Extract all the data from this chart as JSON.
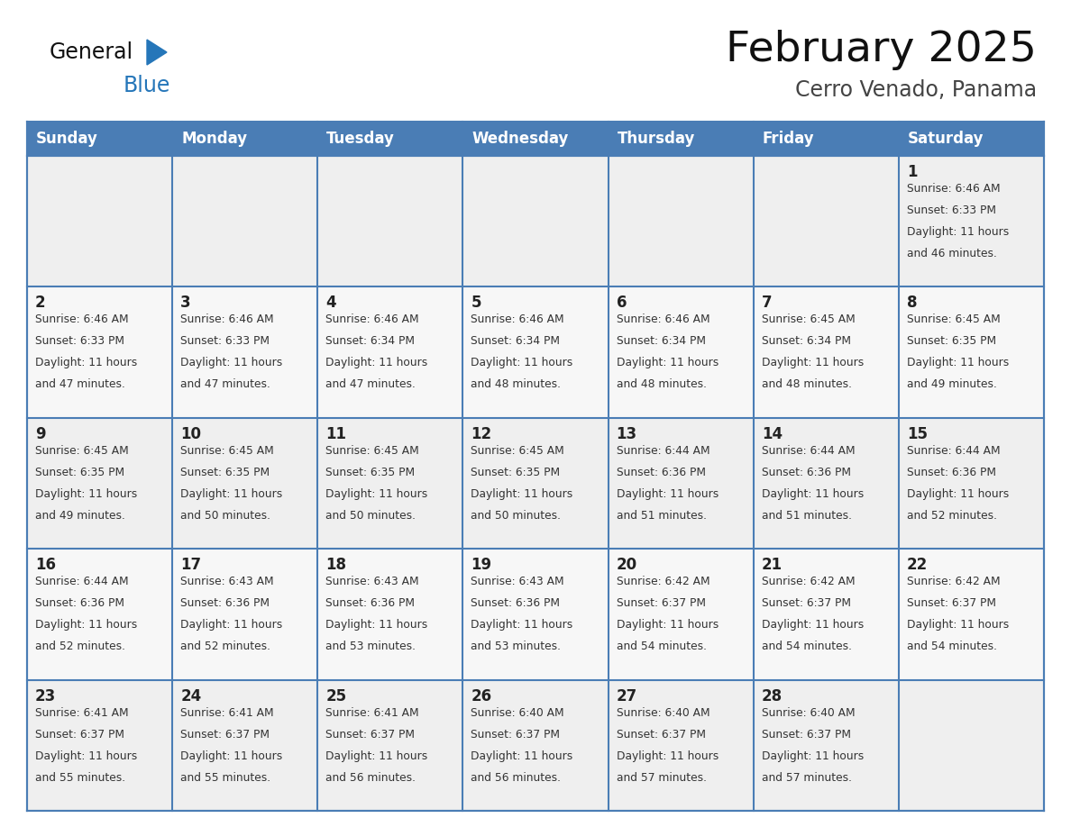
{
  "title": "February 2025",
  "subtitle": "Cerro Venado, Panama",
  "days_of_week": [
    "Sunday",
    "Monday",
    "Tuesday",
    "Wednesday",
    "Thursday",
    "Friday",
    "Saturday"
  ],
  "header_bg": "#4a7db5",
  "header_text": "#ffffff",
  "cell_bg_odd": "#efefef",
  "cell_bg_even": "#f7f7f7",
  "border_color": "#4a7db5",
  "day_num_color": "#222222",
  "info_color": "#333333",
  "title_color": "#111111",
  "subtitle_color": "#444444",
  "logo_general_color": "#111111",
  "logo_blue_color": "#2576b9",
  "calendar": [
    [
      null,
      null,
      null,
      null,
      null,
      null,
      {
        "day": 1,
        "sunrise": "6:46 AM",
        "sunset": "6:33 PM",
        "daylight": "11 hours",
        "daylight2": "and 46 minutes."
      }
    ],
    [
      {
        "day": 2,
        "sunrise": "6:46 AM",
        "sunset": "6:33 PM",
        "daylight": "11 hours",
        "daylight2": "and 47 minutes."
      },
      {
        "day": 3,
        "sunrise": "6:46 AM",
        "sunset": "6:33 PM",
        "daylight": "11 hours",
        "daylight2": "and 47 minutes."
      },
      {
        "day": 4,
        "sunrise": "6:46 AM",
        "sunset": "6:34 PM",
        "daylight": "11 hours",
        "daylight2": "and 47 minutes."
      },
      {
        "day": 5,
        "sunrise": "6:46 AM",
        "sunset": "6:34 PM",
        "daylight": "11 hours",
        "daylight2": "and 48 minutes."
      },
      {
        "day": 6,
        "sunrise": "6:46 AM",
        "sunset": "6:34 PM",
        "daylight": "11 hours",
        "daylight2": "and 48 minutes."
      },
      {
        "day": 7,
        "sunrise": "6:45 AM",
        "sunset": "6:34 PM",
        "daylight": "11 hours",
        "daylight2": "and 48 minutes."
      },
      {
        "day": 8,
        "sunrise": "6:45 AM",
        "sunset": "6:35 PM",
        "daylight": "11 hours",
        "daylight2": "and 49 minutes."
      }
    ],
    [
      {
        "day": 9,
        "sunrise": "6:45 AM",
        "sunset": "6:35 PM",
        "daylight": "11 hours",
        "daylight2": "and 49 minutes."
      },
      {
        "day": 10,
        "sunrise": "6:45 AM",
        "sunset": "6:35 PM",
        "daylight": "11 hours",
        "daylight2": "and 50 minutes."
      },
      {
        "day": 11,
        "sunrise": "6:45 AM",
        "sunset": "6:35 PM",
        "daylight": "11 hours",
        "daylight2": "and 50 minutes."
      },
      {
        "day": 12,
        "sunrise": "6:45 AM",
        "sunset": "6:35 PM",
        "daylight": "11 hours",
        "daylight2": "and 50 minutes."
      },
      {
        "day": 13,
        "sunrise": "6:44 AM",
        "sunset": "6:36 PM",
        "daylight": "11 hours",
        "daylight2": "and 51 minutes."
      },
      {
        "day": 14,
        "sunrise": "6:44 AM",
        "sunset": "6:36 PM",
        "daylight": "11 hours",
        "daylight2": "and 51 minutes."
      },
      {
        "day": 15,
        "sunrise": "6:44 AM",
        "sunset": "6:36 PM",
        "daylight": "11 hours",
        "daylight2": "and 52 minutes."
      }
    ],
    [
      {
        "day": 16,
        "sunrise": "6:44 AM",
        "sunset": "6:36 PM",
        "daylight": "11 hours",
        "daylight2": "and 52 minutes."
      },
      {
        "day": 17,
        "sunrise": "6:43 AM",
        "sunset": "6:36 PM",
        "daylight": "11 hours",
        "daylight2": "and 52 minutes."
      },
      {
        "day": 18,
        "sunrise": "6:43 AM",
        "sunset": "6:36 PM",
        "daylight": "11 hours",
        "daylight2": "and 53 minutes."
      },
      {
        "day": 19,
        "sunrise": "6:43 AM",
        "sunset": "6:36 PM",
        "daylight": "11 hours",
        "daylight2": "and 53 minutes."
      },
      {
        "day": 20,
        "sunrise": "6:42 AM",
        "sunset": "6:37 PM",
        "daylight": "11 hours",
        "daylight2": "and 54 minutes."
      },
      {
        "day": 21,
        "sunrise": "6:42 AM",
        "sunset": "6:37 PM",
        "daylight": "11 hours",
        "daylight2": "and 54 minutes."
      },
      {
        "day": 22,
        "sunrise": "6:42 AM",
        "sunset": "6:37 PM",
        "daylight": "11 hours",
        "daylight2": "and 54 minutes."
      }
    ],
    [
      {
        "day": 23,
        "sunrise": "6:41 AM",
        "sunset": "6:37 PM",
        "daylight": "11 hours",
        "daylight2": "and 55 minutes."
      },
      {
        "day": 24,
        "sunrise": "6:41 AM",
        "sunset": "6:37 PM",
        "daylight": "11 hours",
        "daylight2": "and 55 minutes."
      },
      {
        "day": 25,
        "sunrise": "6:41 AM",
        "sunset": "6:37 PM",
        "daylight": "11 hours",
        "daylight2": "and 56 minutes."
      },
      {
        "day": 26,
        "sunrise": "6:40 AM",
        "sunset": "6:37 PM",
        "daylight": "11 hours",
        "daylight2": "and 56 minutes."
      },
      {
        "day": 27,
        "sunrise": "6:40 AM",
        "sunset": "6:37 PM",
        "daylight": "11 hours",
        "daylight2": "and 57 minutes."
      },
      {
        "day": 28,
        "sunrise": "6:40 AM",
        "sunset": "6:37 PM",
        "daylight": "11 hours",
        "daylight2": "and 57 minutes."
      },
      null
    ]
  ],
  "figsize": [
    11.88,
    9.18
  ],
  "dpi": 100
}
